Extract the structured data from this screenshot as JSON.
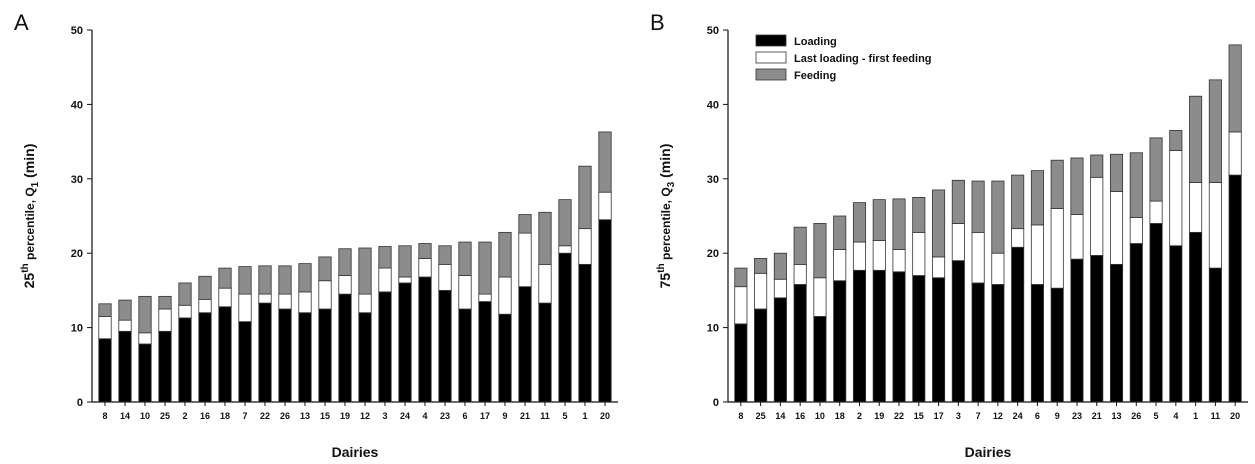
{
  "chart_data": [
    {
      "type": "bar",
      "stacked": true,
      "panel_label": "A",
      "xlabel": "Dairies",
      "ylabel_main": "25",
      "ylabel_sup": "th",
      "ylabel_text": " percentile, Q",
      "ylabel_sub": "1",
      "ylabel_tail": " (min)",
      "ylim": [
        0,
        50
      ],
      "yticks": [
        "0",
        "10",
        "20",
        "30",
        "40",
        "50"
      ],
      "categories": [
        "8",
        "14",
        "10",
        "25",
        "2",
        "16",
        "18",
        "7",
        "22",
        "26",
        "13",
        "15",
        "19",
        "12",
        "3",
        "24",
        "4",
        "23",
        "6",
        "17",
        "9",
        "21",
        "11",
        "5",
        "1",
        "20"
      ],
      "series": [
        {
          "name": "Loading",
          "color": "#000000",
          "values": [
            8.5,
            9.5,
            7.8,
            9.5,
            11.3,
            12.0,
            12.8,
            10.8,
            13.3,
            12.5,
            12.0,
            12.5,
            14.5,
            12.0,
            14.8,
            16.0,
            16.8,
            15.0,
            12.5,
            13.5,
            11.8,
            15.5,
            13.3,
            20.0,
            18.5,
            24.5
          ]
        },
        {
          "name": "Last loading - first feeding",
          "color": "#ffffff",
          "values": [
            3.0,
            1.5,
            1.5,
            3.0,
            1.7,
            1.8,
            2.5,
            3.7,
            1.2,
            2.0,
            2.8,
            3.8,
            2.5,
            2.5,
            3.2,
            0.8,
            2.5,
            3.5,
            4.5,
            1.0,
            5.0,
            7.2,
            5.2,
            1.0,
            4.8,
            3.7
          ]
        },
        {
          "name": "Feeding",
          "color": "#8c8c8c",
          "values": [
            1.7,
            2.7,
            4.9,
            1.7,
            3.0,
            3.1,
            2.7,
            3.7,
            3.8,
            3.8,
            3.8,
            3.2,
            3.6,
            6.2,
            2.9,
            4.2,
            2.0,
            2.5,
            4.5,
            7.0,
            6.0,
            2.5,
            7.0,
            6.2,
            8.4,
            8.1
          ]
        }
      ]
    },
    {
      "type": "bar",
      "stacked": true,
      "panel_label": "B",
      "xlabel": "Dairies",
      "ylabel_main": "75",
      "ylabel_sup": "th",
      "ylabel_text": " percentile, Q",
      "ylabel_sub": "3",
      "ylabel_tail": " (min)",
      "ylim": [
        0,
        50
      ],
      "yticks": [
        "0",
        "10",
        "20",
        "30",
        "40",
        "50"
      ],
      "legend_position": "top-left",
      "categories": [
        "8",
        "25",
        "14",
        "16",
        "10",
        "18",
        "2",
        "19",
        "22",
        "15",
        "17",
        "3",
        "7",
        "12",
        "24",
        "6",
        "9",
        "23",
        "21",
        "13",
        "26",
        "5",
        "4",
        "1",
        "11",
        "20"
      ],
      "series": [
        {
          "name": "Loading",
          "color": "#000000",
          "values": [
            10.5,
            12.5,
            14.0,
            15.8,
            11.5,
            16.3,
            17.7,
            17.7,
            17.5,
            17.0,
            16.7,
            19.0,
            16.0,
            15.8,
            20.8,
            15.8,
            15.3,
            19.2,
            19.7,
            18.5,
            21.3,
            24.0,
            21.0,
            22.8,
            18.0,
            30.5
          ]
        },
        {
          "name": "Last loading - first feeding",
          "color": "#ffffff",
          "values": [
            5.0,
            4.8,
            2.5,
            2.7,
            5.2,
            4.2,
            3.8,
            4.0,
            3.0,
            5.8,
            2.8,
            5.0,
            6.8,
            4.2,
            2.5,
            8.0,
            10.7,
            6.0,
            10.5,
            9.8,
            3.5,
            3.0,
            12.8,
            6.7,
            11.5,
            5.8
          ]
        },
        {
          "name": "Feeding",
          "color": "#8c8c8c",
          "values": [
            2.5,
            2.0,
            3.5,
            5.0,
            7.3,
            4.5,
            5.3,
            5.5,
            6.8,
            4.7,
            9.0,
            5.8,
            6.9,
            9.7,
            7.2,
            7.3,
            6.5,
            7.6,
            3.0,
            5.0,
            8.7,
            8.5,
            2.7,
            11.6,
            13.8,
            11.7
          ]
        }
      ]
    }
  ]
}
